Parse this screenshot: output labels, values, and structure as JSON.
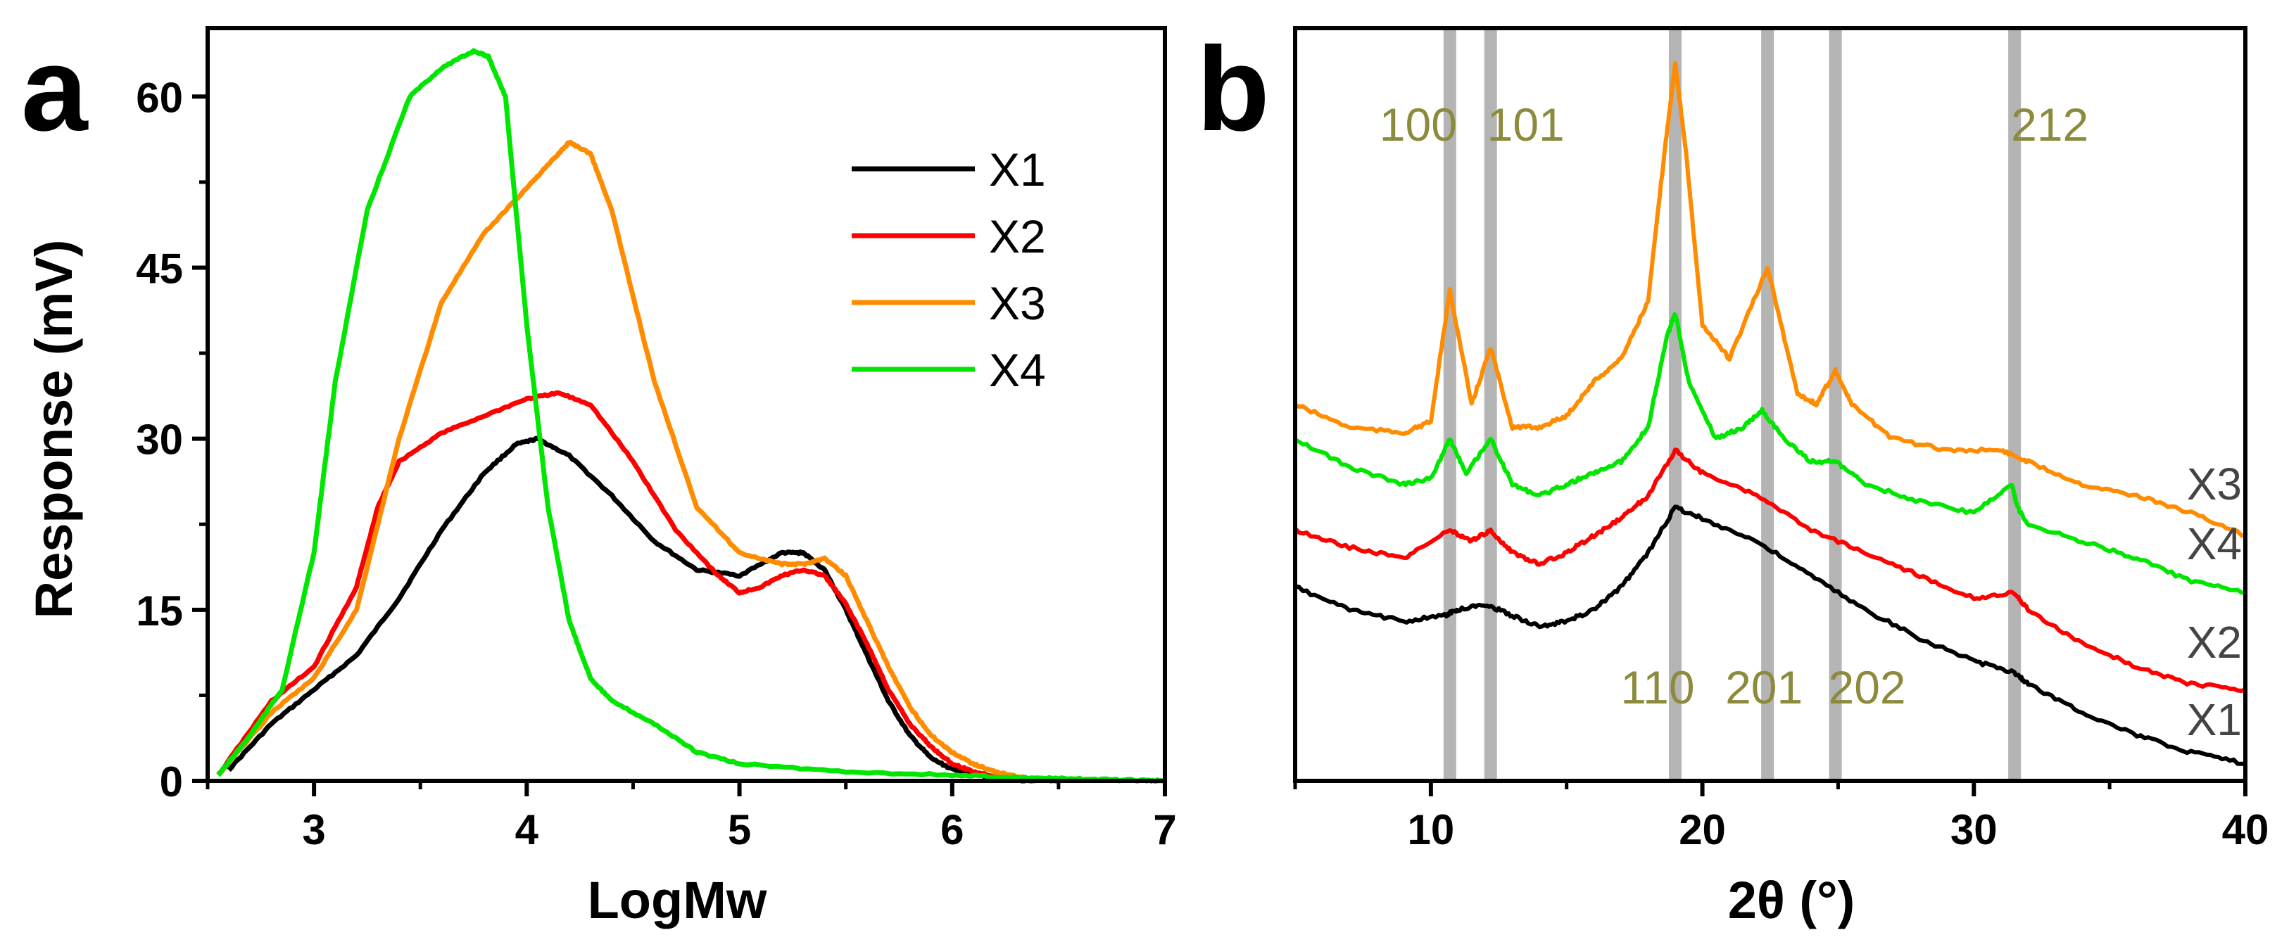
{
  "chart_data": [
    {
      "panel": "a",
      "type": "line",
      "xlabel": "LogMw",
      "ylabel": "Response (mV)",
      "xlim": [
        2.5,
        7
      ],
      "ylim": [
        0,
        66
      ],
      "xticks": [
        3,
        4,
        5,
        6,
        7
      ],
      "yticks": [
        0,
        15,
        30,
        45,
        60
      ],
      "legend_position": "top-right",
      "series": [
        {
          "name": "X1",
          "color": "#000000",
          "x": [
            2.6,
            2.8,
            3.0,
            3.2,
            3.4,
            3.6,
            3.8,
            3.95,
            4.05,
            4.2,
            4.4,
            4.6,
            4.8,
            5.0,
            5.2,
            5.3,
            5.4,
            5.5,
            5.6,
            5.7,
            5.8,
            5.9,
            6.0,
            6.1,
            6.2,
            6.3,
            6.35
          ],
          "y": [
            1,
            5,
            8,
            11,
            16,
            22,
            27,
            29.5,
            30,
            28.5,
            25,
            21,
            18.5,
            18,
            20,
            20,
            18.5,
            15,
            11,
            7,
            4,
            2,
            1,
            0.6,
            0.3,
            0.1,
            0
          ]
        },
        {
          "name": "X2",
          "color": "#ff0000",
          "x": [
            2.55,
            2.8,
            3.0,
            3.2,
            3.3,
            3.4,
            3.6,
            3.8,
            4.0,
            4.15,
            4.3,
            4.5,
            4.7,
            4.9,
            5.0,
            5.1,
            5.2,
            5.3,
            5.4,
            5.5,
            5.6,
            5.7,
            5.8,
            5.9,
            6.0,
            6.1,
            6.2,
            6.3,
            6.4
          ],
          "y": [
            0.5,
            7,
            10,
            17,
            24,
            28,
            30.5,
            32,
            33.5,
            34,
            33,
            28,
            22,
            18,
            16.5,
            17,
            18,
            18.5,
            18,
            15.5,
            12,
            8,
            5,
            3,
            1.5,
            0.8,
            0.4,
            0.1,
            0
          ]
        },
        {
          "name": "X3",
          "color": "#ff8c00",
          "x": [
            2.55,
            2.8,
            3.0,
            3.2,
            3.4,
            3.6,
            3.8,
            4.0,
            4.1,
            4.2,
            4.3,
            4.4,
            4.6,
            4.8,
            5.0,
            5.2,
            5.3,
            5.4,
            5.5,
            5.6,
            5.7,
            5.8,
            5.9,
            6.0,
            6.1,
            6.2,
            6.3,
            6.4,
            6.5
          ],
          "y": [
            0.5,
            6,
            9,
            15,
            30,
            42,
            48,
            52,
            54,
            56,
            55,
            50,
            35,
            24,
            20,
            19,
            19,
            19.5,
            18,
            14,
            10,
            6.5,
            4,
            2.5,
            1.5,
            0.8,
            0.4,
            0.1,
            0
          ]
        },
        {
          "name": "X4",
          "color": "#00e600",
          "x": [
            2.55,
            2.7,
            2.85,
            3.0,
            3.1,
            3.25,
            3.45,
            3.6,
            3.75,
            3.82,
            3.9,
            4.0,
            4.1,
            4.2,
            4.3,
            4.4,
            4.6,
            4.8,
            5.0,
            5.5,
            6.0,
            6.3,
            6.5,
            6.7,
            6.9,
            7.0
          ],
          "y": [
            0.5,
            4,
            8,
            20,
            35,
            50,
            60,
            62.5,
            64,
            63.5,
            60,
            40,
            24,
            14,
            9,
            7,
            5,
            2.5,
            1.5,
            0.8,
            0.5,
            0.3,
            0.2,
            0.1,
            0.05,
            0
          ]
        }
      ]
    },
    {
      "panel": "b",
      "type": "line",
      "xlabel": "2θ (°)",
      "ylabel": "",
      "xlim": [
        5,
        40
      ],
      "ylim": [
        0,
        66
      ],
      "xticks": [
        10,
        20,
        30,
        40
      ],
      "peak_positions": [
        10.7,
        12.2,
        19.0,
        22.4,
        24.9,
        31.5
      ],
      "peak_labels_top": [
        {
          "text": "100",
          "x": 10.7
        },
        {
          "text": "101",
          "x": 12.2
        },
        {
          "text": "212",
          "x": 31.5
        }
      ],
      "peak_labels_bottom": [
        {
          "text": "110",
          "x": 19.0
        },
        {
          "text": "201",
          "x": 22.4
        },
        {
          "text": "202",
          "x": 24.9
        }
      ],
      "series": [
        {
          "name": "X1",
          "color": "#000000",
          "x": [
            5,
            7,
            9,
            10.5,
            11,
            12,
            13,
            14,
            15,
            16,
            17,
            18,
            19,
            20,
            22,
            24,
            26,
            28,
            30,
            31.5,
            32,
            34,
            36,
            38,
            40
          ],
          "y": [
            17,
            15,
            14,
            14.5,
            15,
            15.5,
            14.5,
            13.5,
            14,
            15,
            17,
            20,
            24,
            23,
            21,
            18,
            15,
            12.5,
            10.5,
            9.5,
            8.5,
            6,
            4,
            2.5,
            1.5
          ]
        },
        {
          "name": "X2",
          "color": "#ff0000",
          "x": [
            5,
            7,
            9,
            10.7,
            11.5,
            12.2,
            13,
            14,
            15,
            16,
            17,
            18,
            19,
            20,
            22,
            24,
            26,
            28,
            30,
            31.5,
            32,
            34,
            36,
            38,
            40
          ],
          "y": [
            22,
            20.5,
            19.5,
            22,
            21,
            22,
            20,
            19,
            20,
            21.5,
            23,
            25,
            29,
            27,
            25,
            22,
            20,
            18,
            16,
            16.5,
            15,
            12,
            10,
            8.5,
            8
          ]
        },
        {
          "name": "X4",
          "color": "#00e600",
          "x": [
            5,
            7,
            9,
            10,
            10.7,
            11.3,
            12.2,
            13,
            14,
            15,
            16,
            17,
            18,
            18.7,
            19.0,
            19.5,
            20.5,
            21.5,
            22.2,
            23,
            24,
            24.9,
            26,
            28,
            30,
            31.4,
            31.6,
            32,
            34,
            36,
            38,
            40
          ],
          "y": [
            30,
            27.5,
            26,
            26.5,
            30,
            27,
            30,
            26,
            25,
            26,
            27,
            28,
            31,
            39,
            41,
            35,
            30,
            31,
            32.5,
            30,
            28,
            28,
            26,
            24.5,
            23.5,
            26,
            24,
            22.5,
            21,
            19.5,
            17.5,
            16.5
          ]
        },
        {
          "name": "X3",
          "color": "#ff8c00",
          "x": [
            5,
            7,
            9,
            10,
            10.7,
            11.5,
            12.2,
            13,
            14,
            15,
            16,
            17,
            18,
            18.6,
            19.0,
            19.4,
            20,
            21,
            22.4,
            23.5,
            24.2,
            24.9,
            25.5,
            27,
            29,
            31,
            32,
            34,
            36,
            38,
            40
          ],
          "y": [
            33,
            31,
            30.5,
            31.5,
            43,
            33,
            38,
            31,
            31,
            32,
            35,
            37,
            42,
            55,
            63,
            55,
            40,
            37,
            45,
            34,
            33,
            36,
            33,
            30,
            29,
            29,
            28,
            26,
            25,
            23.5,
            21.5
          ]
        }
      ],
      "series_labels": [
        "X3",
        "X4",
        "X2",
        "X1"
      ]
    }
  ],
  "panels": {
    "a": {
      "letter": "a"
    },
    "b": {
      "letter": "b"
    }
  }
}
